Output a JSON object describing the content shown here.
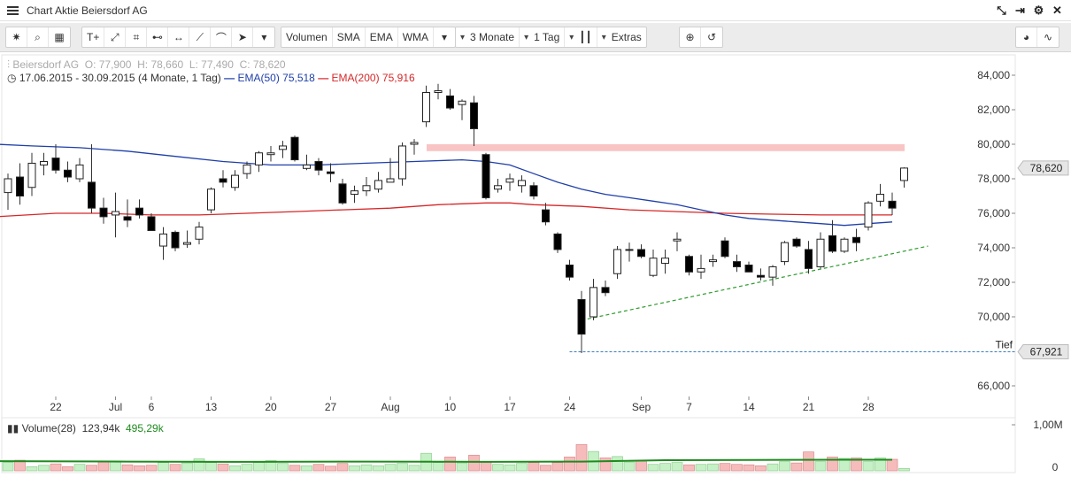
{
  "window": {
    "title": "Chart Aktie Beiersdorf AG"
  },
  "toolbar": {
    "indicators": [
      "Volumen",
      "SMA",
      "EMA",
      "WMA"
    ],
    "range": "3 Monate",
    "interval": "1 Tag",
    "extras": "Extras"
  },
  "info": {
    "name": "Beiersdorf AG",
    "open": "O: 77,900",
    "high": "H: 78,660",
    "low": "L: 77,490",
    "close": "C: 78,620",
    "period": "17.06.2015 - 30.09.2015 (4 Monate, 1 Tag)",
    "ema50_label": "EMA(50)",
    "ema50_value": "75,518",
    "ema200_label": "EMA(200)",
    "ema200_value": "75,916"
  },
  "volume_info": {
    "label": "Volume(28)",
    "v1": "123,94k",
    "v2": "495,29k"
  },
  "colors": {
    "ema50": "#1f3fa8",
    "ema200": "#d62728",
    "up": "#ffffff",
    "down": "#000000",
    "resistance": "#f9c4c4",
    "trend": "#2e9b2e",
    "low_line": "#3a7fbf",
    "vol_up": "#c6f0c6",
    "vol_down": "#f6bcbc",
    "vol_avg": "#1e8b1e"
  },
  "chart_data": {
    "type": "candlestick",
    "y_ticks": [
      "84,000",
      "82,000",
      "80,000",
      "78,000",
      "76,000",
      "74,000",
      "72,000",
      "70,000",
      "66,000"
    ],
    "y_range": [
      65,
      85
    ],
    "x_ticks": [
      {
        "label": "22",
        "i": 4
      },
      {
        "label": "Jul",
        "i": 9
      },
      {
        "label": "6",
        "i": 12
      },
      {
        "label": "13",
        "i": 17
      },
      {
        "label": "20",
        "i": 22
      },
      {
        "label": "27",
        "i": 27
      },
      {
        "label": "Aug",
        "i": 32
      },
      {
        "label": "10",
        "i": 37
      },
      {
        "label": "17",
        "i": 42
      },
      {
        "label": "24",
        "i": 47
      },
      {
        "label": "Sep",
        "i": 53
      },
      {
        "label": "7",
        "i": 57
      },
      {
        "label": "14",
        "i": 62
      },
      {
        "label": "21",
        "i": 67
      },
      {
        "label": "28",
        "i": 72
      }
    ],
    "last_price_label": "78,620",
    "low_label": "Tief",
    "low_value_label": "67,921",
    "low_value": 67.921,
    "last_value": 78.62,
    "candles": [
      [
        77.2,
        78.3,
        76.2,
        78.0
      ],
      [
        78.1,
        78.9,
        76.5,
        77.0
      ],
      [
        77.5,
        79.5,
        77.0,
        78.9
      ],
      [
        78.8,
        79.5,
        78.2,
        79.0
      ],
      [
        79.2,
        80.0,
        78.3,
        78.5
      ],
      [
        78.5,
        79.0,
        77.8,
        78.1
      ],
      [
        78.0,
        79.2,
        77.8,
        78.8
      ],
      [
        77.8,
        80.0,
        76.0,
        76.3
      ],
      [
        76.3,
        76.9,
        75.4,
        75.8
      ],
      [
        75.9,
        77.2,
        74.6,
        76.1
      ],
      [
        75.8,
        76.8,
        75.2,
        75.6
      ],
      [
        76.3,
        76.8,
        75.7,
        75.9
      ],
      [
        75.8,
        76.0,
        75.0,
        75.0
      ],
      [
        74.1,
        75.2,
        73.3,
        74.8
      ],
      [
        74.9,
        75.0,
        73.8,
        74.0
      ],
      [
        74.2,
        75.0,
        74.0,
        74.3
      ],
      [
        74.5,
        75.5,
        74.2,
        75.2
      ],
      [
        76.2,
        77.5,
        76.0,
        77.4
      ],
      [
        78.0,
        78.5,
        77.5,
        77.8
      ],
      [
        77.5,
        78.5,
        77.3,
        78.2
      ],
      [
        78.3,
        79.0,
        78.0,
        78.8
      ],
      [
        78.8,
        79.6,
        78.4,
        79.5
      ],
      [
        79.4,
        79.9,
        79.0,
        79.5
      ],
      [
        79.7,
        80.2,
        79.2,
        79.9
      ],
      [
        80.4,
        80.5,
        79.0,
        79.1
      ],
      [
        78.6,
        79.4,
        78.5,
        78.8
      ],
      [
        79.0,
        79.2,
        78.2,
        78.5
      ],
      [
        78.4,
        78.9,
        77.8,
        78.3
      ],
      [
        77.7,
        78.0,
        76.5,
        76.6
      ],
      [
        77.1,
        77.6,
        76.6,
        77.3
      ],
      [
        77.3,
        78.1,
        77.0,
        77.6
      ],
      [
        77.4,
        78.4,
        77.2,
        77.9
      ],
      [
        77.8,
        79.2,
        77.8,
        78.0
      ],
      [
        78.0,
        80.1,
        77.6,
        79.9
      ],
      [
        80.0,
        80.3,
        79.4,
        80.1
      ],
      [
        81.3,
        83.4,
        81.0,
        83.0
      ],
      [
        83.0,
        83.5,
        82.6,
        83.1
      ],
      [
        82.8,
        83.2,
        82.0,
        82.1
      ],
      [
        82.3,
        82.6,
        81.4,
        82.5
      ],
      [
        82.4,
        82.8,
        79.9,
        80.9
      ],
      [
        79.4,
        79.5,
        76.8,
        76.9
      ],
      [
        77.4,
        78.0,
        77.2,
        77.6
      ],
      [
        77.8,
        78.3,
        77.3,
        78.0
      ],
      [
        77.6,
        78.2,
        77.2,
        77.9
      ],
      [
        77.6,
        77.8,
        76.8,
        77.0
      ],
      [
        76.2,
        76.6,
        75.3,
        75.5
      ],
      [
        74.8,
        74.9,
        73.7,
        73.9
      ],
      [
        73.0,
        73.3,
        72.1,
        72.3
      ],
      [
        71.0,
        71.5,
        67.9,
        69.0
      ],
      [
        70.0,
        72.2,
        69.8,
        71.7
      ],
      [
        71.7,
        72.1,
        71.2,
        71.4
      ],
      [
        72.5,
        74.1,
        72.2,
        73.9
      ],
      [
        73.9,
        74.3,
        73.2,
        73.9
      ],
      [
        73.9,
        74.2,
        73.4,
        73.5
      ],
      [
        72.4,
        73.9,
        72.3,
        73.4
      ],
      [
        73.1,
        73.9,
        72.5,
        73.4
      ],
      [
        74.4,
        74.9,
        73.8,
        74.5
      ],
      [
        73.5,
        73.6,
        72.4,
        72.6
      ],
      [
        72.6,
        73.6,
        72.2,
        72.8
      ],
      [
        73.2,
        73.6,
        72.9,
        73.3
      ],
      [
        74.4,
        74.6,
        73.4,
        73.5
      ],
      [
        73.2,
        73.6,
        72.6,
        72.9
      ],
      [
        73.0,
        73.2,
        72.6,
        72.6
      ],
      [
        72.4,
        72.8,
        72.1,
        72.3
      ],
      [
        72.3,
        73.0,
        71.8,
        72.9
      ],
      [
        73.2,
        74.4,
        73.0,
        74.3
      ],
      [
        74.5,
        74.6,
        74.0,
        74.1
      ],
      [
        73.9,
        74.4,
        72.5,
        72.8
      ],
      [
        72.9,
        74.9,
        72.8,
        74.5
      ],
      [
        74.7,
        75.6,
        73.7,
        73.8
      ],
      [
        73.8,
        74.6,
        73.7,
        74.5
      ],
      [
        74.6,
        75.1,
        73.8,
        74.3
      ],
      [
        75.2,
        76.7,
        75.0,
        76.6
      ],
      [
        76.7,
        77.7,
        76.4,
        77.1
      ],
      [
        76.7,
        77.2,
        75.9,
        76.3
      ],
      [
        77.9,
        78.66,
        77.49,
        78.62
      ]
    ],
    "ema50": [
      [
        -1,
        80.0
      ],
      [
        2,
        79.9
      ],
      [
        6,
        79.8
      ],
      [
        10,
        79.6
      ],
      [
        14,
        79.3
      ],
      [
        18,
        79.0
      ],
      [
        22,
        78.8
      ],
      [
        26,
        78.8
      ],
      [
        30,
        78.9
      ],
      [
        34,
        79.0
      ],
      [
        38,
        79.1
      ],
      [
        40,
        79.0
      ],
      [
        42,
        78.8
      ],
      [
        44,
        78.3
      ],
      [
        46,
        77.8
      ],
      [
        48,
        77.4
      ],
      [
        50,
        77.1
      ],
      [
        52,
        76.9
      ],
      [
        54,
        76.7
      ],
      [
        56,
        76.5
      ],
      [
        58,
        76.2
      ],
      [
        60,
        75.9
      ],
      [
        62,
        75.7
      ],
      [
        64,
        75.6
      ],
      [
        66,
        75.5
      ],
      [
        68,
        75.4
      ],
      [
        70,
        75.3
      ],
      [
        72,
        75.4
      ],
      [
        74,
        75.5
      ]
    ],
    "ema200": [
      [
        -1,
        75.8
      ],
      [
        4,
        76.0
      ],
      [
        8,
        76.0
      ],
      [
        12,
        75.9
      ],
      [
        16,
        75.9
      ],
      [
        20,
        76.0
      ],
      [
        24,
        76.1
      ],
      [
        28,
        76.2
      ],
      [
        32,
        76.3
      ],
      [
        36,
        76.5
      ],
      [
        40,
        76.6
      ],
      [
        42,
        76.6
      ],
      [
        44,
        76.5
      ],
      [
        48,
        76.4
      ],
      [
        52,
        76.2
      ],
      [
        56,
        76.1
      ],
      [
        60,
        76.0
      ],
      [
        64,
        75.95
      ],
      [
        68,
        75.9
      ],
      [
        72,
        75.9
      ],
      [
        74,
        75.9
      ]
    ],
    "resistance_zone": [
      79.6,
      80.0
    ],
    "trendline": [
      [
        48,
        69.8
      ],
      [
        77,
        74.1
      ]
    ],
    "volume_ymax": 1000,
    "volume_ticks": [
      "1,00M",
      "0"
    ],
    "volumes": [
      180,
      230,
      90,
      120,
      150,
      90,
      140,
      120,
      190,
      210,
      130,
      110,
      120,
      180,
      140,
      170,
      260,
      180,
      150,
      110,
      140,
      180,
      220,
      160,
      120,
      110,
      140,
      100,
      160,
      110,
      130,
      110,
      140,
      160,
      120,
      380,
      180,
      300,
      170,
      340,
      200,
      140,
      130,
      160,
      180,
      120,
      180,
      300,
      570,
      420,
      280,
      310,
      190,
      210,
      140,
      160,
      180,
      130,
      140,
      150,
      160,
      140,
      130,
      110,
      150,
      200,
      170,
      410,
      200,
      300,
      270,
      280,
      200,
      280,
      250,
      50
    ],
    "vol_avg": [
      [
        -1,
        210
      ],
      [
        10,
        200
      ],
      [
        20,
        195
      ],
      [
        30,
        200
      ],
      [
        40,
        195
      ],
      [
        48,
        200
      ],
      [
        55,
        230
      ],
      [
        62,
        235
      ],
      [
        70,
        240
      ],
      [
        74,
        240
      ]
    ]
  }
}
